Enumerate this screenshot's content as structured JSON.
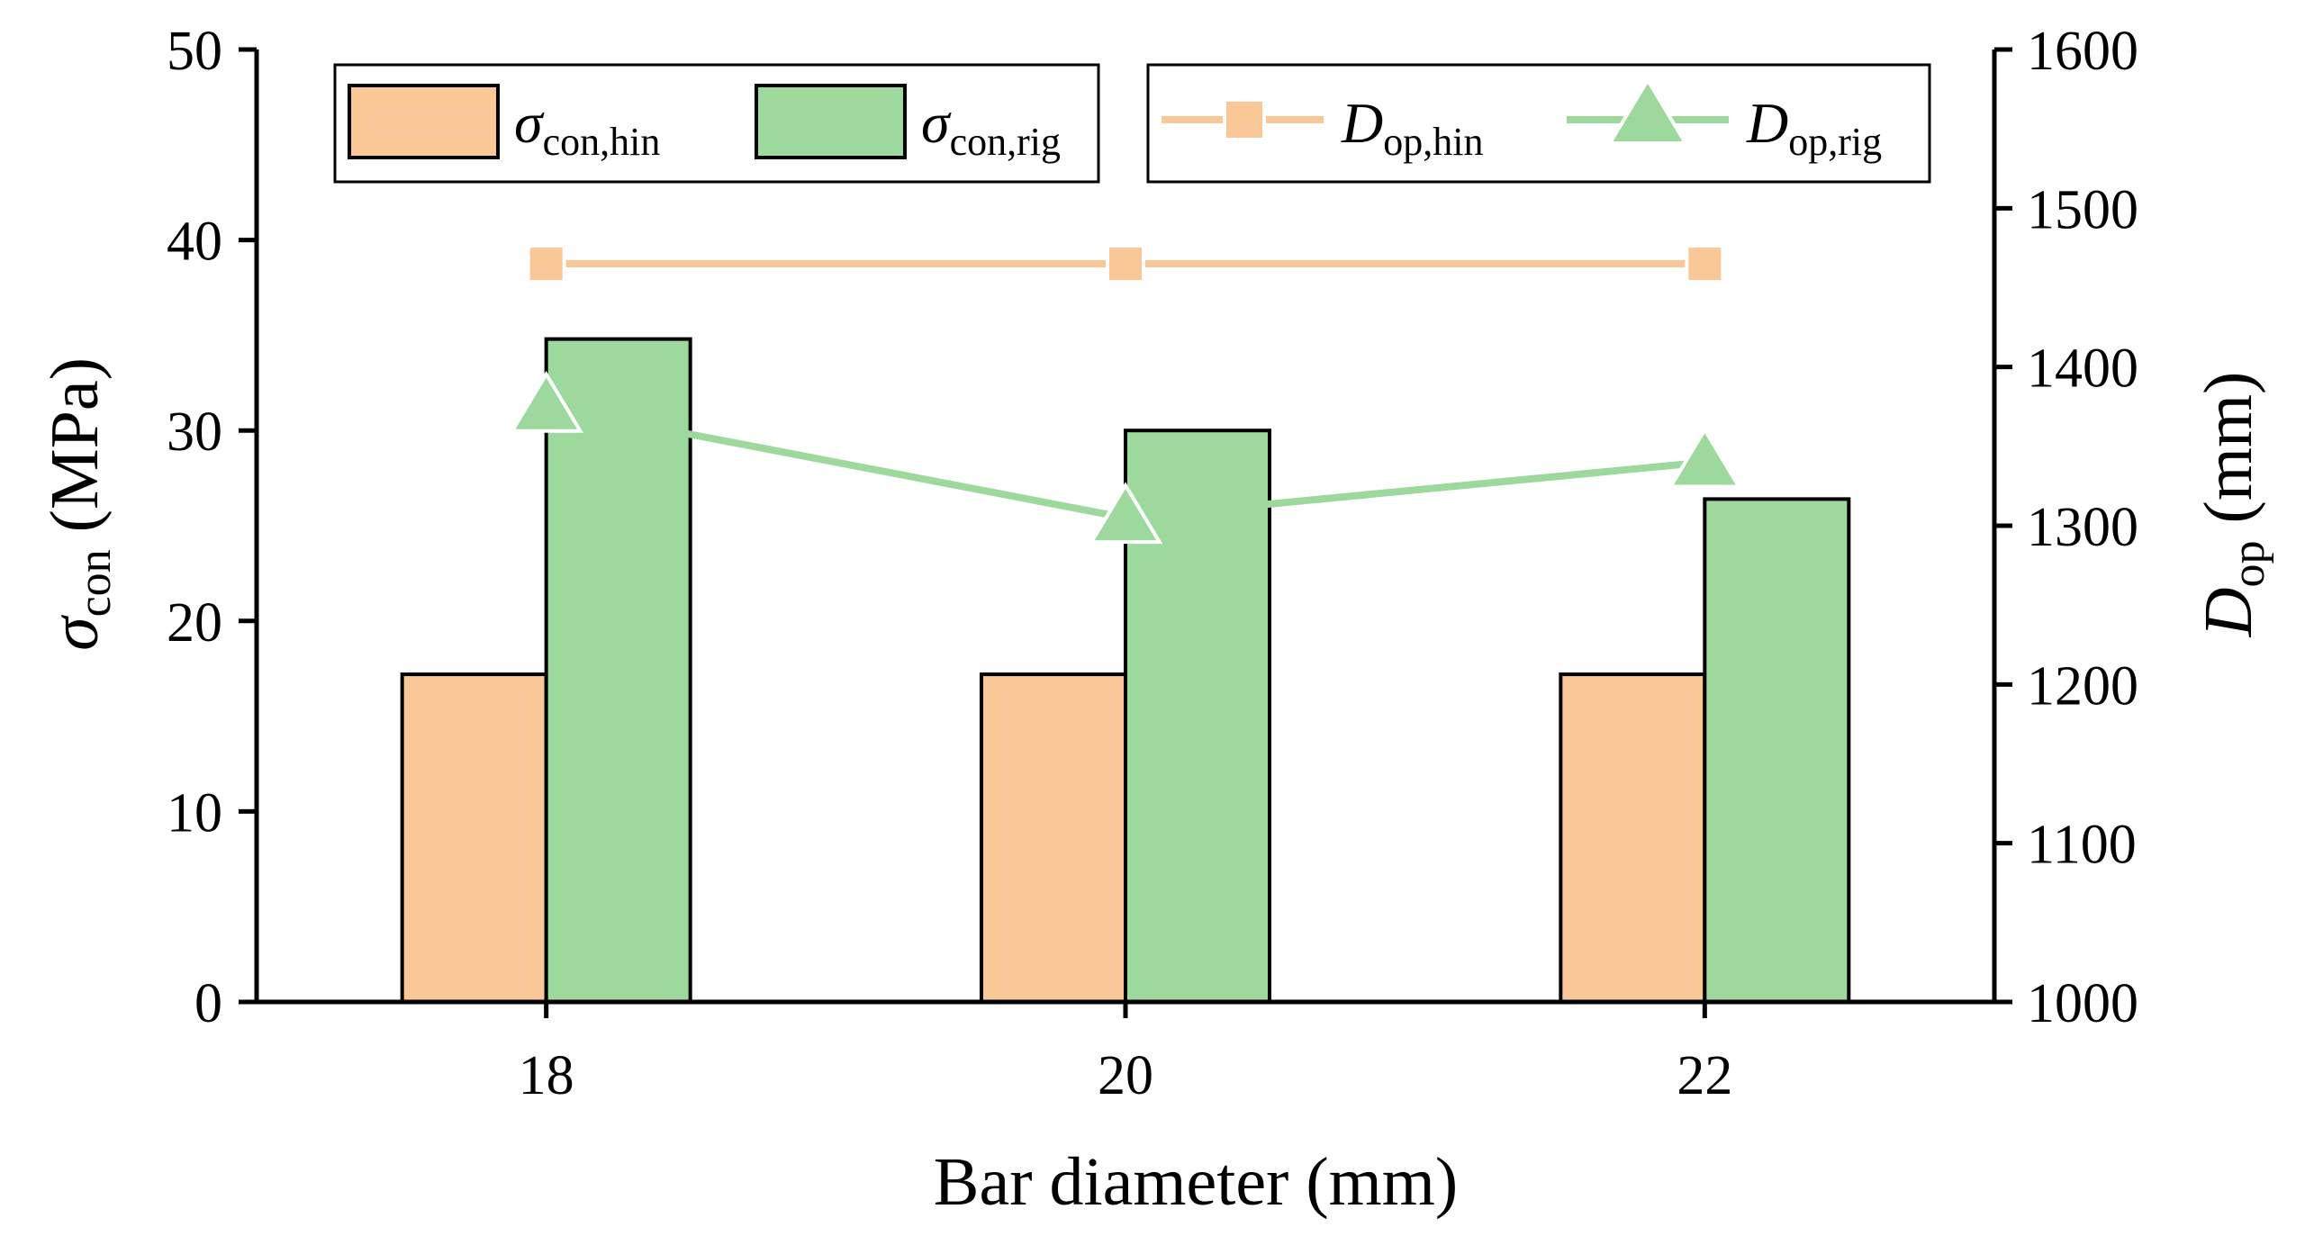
{
  "chart_data": {
    "type": "bar+line",
    "xlabel": "Bar diameter (mm)",
    "categories": [
      "18",
      "20",
      "22"
    ],
    "left_axis": {
      "label_main": "σ",
      "label_sub": "con",
      "label_unit": " (MPa)",
      "ylim": [
        0,
        50
      ],
      "ticks": [
        "0",
        "10",
        "20",
        "30",
        "40",
        "50"
      ]
    },
    "right_axis": {
      "label_main": "D",
      "label_sub": "op",
      "label_unit": " (mm)",
      "ylim": [
        1000,
        1600
      ],
      "ticks": [
        "1000",
        "1100",
        "1200",
        "1300",
        "1400",
        "1500",
        "1600"
      ]
    },
    "bar_series": [
      {
        "name_main": "σ",
        "name_sub": "con,hin",
        "color": "#FAC896",
        "values": [
          17.2,
          17.2,
          17.2
        ]
      },
      {
        "name_main": "σ",
        "name_sub": "con,rig",
        "color": "#9DD89D",
        "values": [
          34.8,
          30.0,
          26.4
        ]
      }
    ],
    "line_series": [
      {
        "name_main": "D",
        "name_sub": "op,hin",
        "color": "#FAC896",
        "marker": "square",
        "values": [
          1465,
          1465,
          1465
        ]
      },
      {
        "name_main": "D",
        "name_sub": "op,rig",
        "color": "#9DD89D",
        "marker": "triangle",
        "values": [
          1375,
          1305,
          1340
        ]
      }
    ]
  }
}
